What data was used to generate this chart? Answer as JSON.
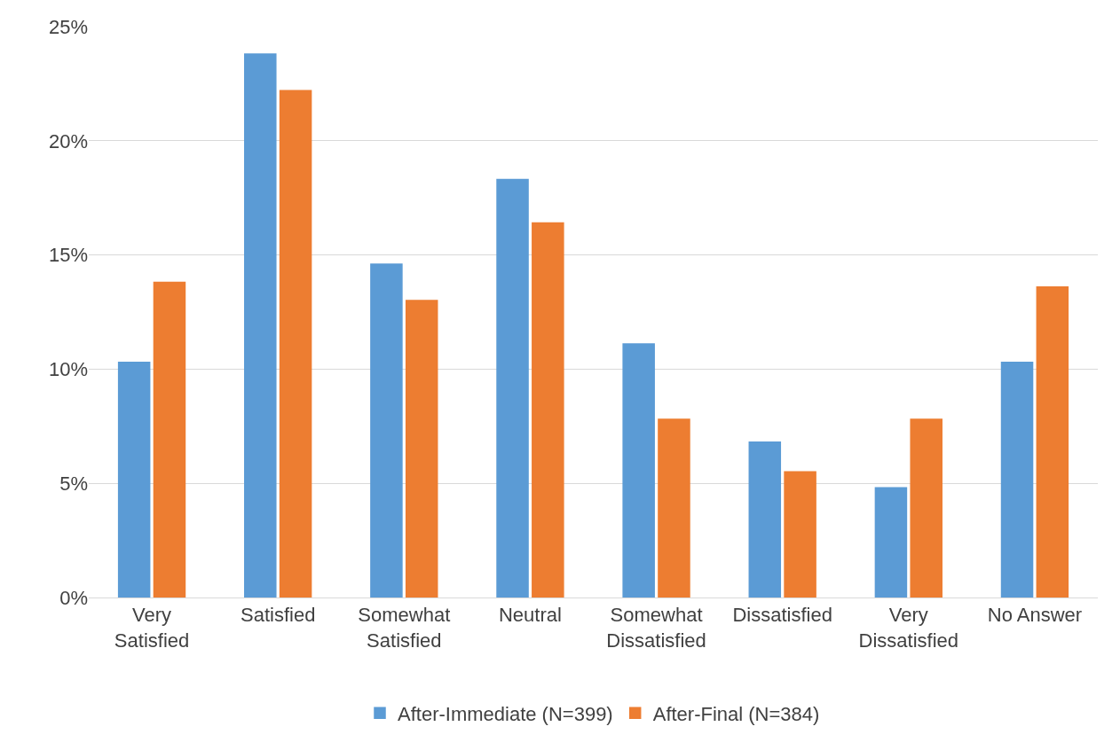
{
  "chart_data": {
    "type": "bar",
    "categories": [
      "Very Satisfied",
      "Satisfied",
      "Somewhat Satisfied",
      "Neutral",
      "Somewhat Dissatisfied",
      "Dissatisfied",
      "Very Dissatisfied",
      "No Answer"
    ],
    "series": [
      {
        "name": "After-Immediate (N=399)",
        "color": "#5b9bd5",
        "values": [
          10.3,
          23.8,
          14.6,
          18.3,
          11.1,
          6.8,
          4.8,
          10.3
        ]
      },
      {
        "name": "After-Final (N=384)",
        "color": "#ed7d31",
        "values": [
          13.8,
          22.2,
          13.0,
          16.4,
          7.8,
          5.5,
          7.8,
          13.6
        ]
      }
    ],
    "ylim": [
      0,
      25
    ],
    "yticks": [
      {
        "value": 0,
        "label": "0%"
      },
      {
        "value": 5,
        "label": "5%"
      },
      {
        "value": 10,
        "label": "10%"
      },
      {
        "value": 15,
        "label": "15%"
      },
      {
        "value": 20,
        "label": "20%"
      },
      {
        "value": 25,
        "label": "25%"
      }
    ],
    "grid": "y",
    "legend": "bottom"
  }
}
